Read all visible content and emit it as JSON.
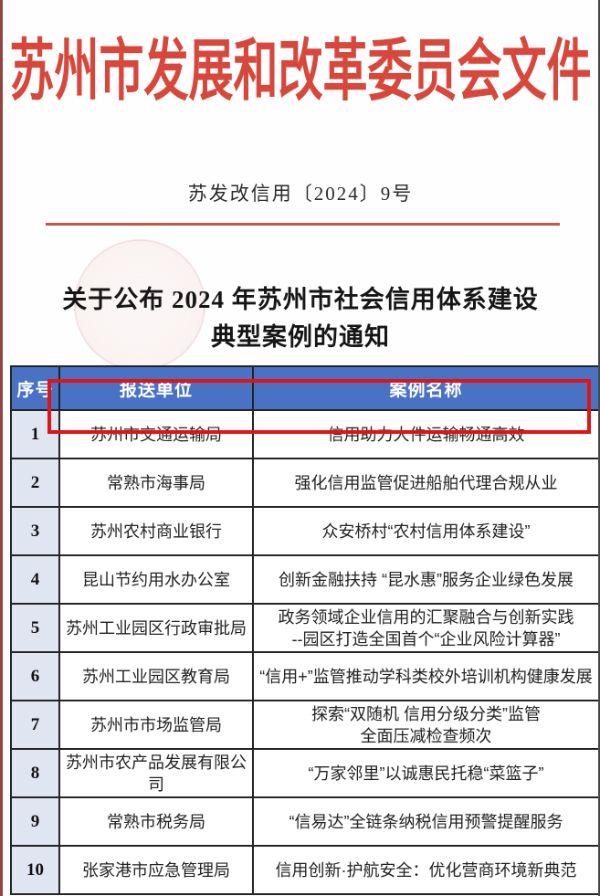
{
  "header": {
    "title": "苏州市发展和改革委员会文件",
    "doc_number": "苏发改信用〔2024〕9号",
    "notice_title_line1": "关于公布 2024 年苏州市社会信用体系建设",
    "notice_title_line2": "典型案例的通知"
  },
  "colors": {
    "letterhead_red": "#d8473b",
    "rule_red": "#c2574a",
    "table_header_blue": "#4a72c4",
    "index_column_bg": "#e0e5f2",
    "highlight_border_red": "#e21313"
  },
  "table": {
    "columns": [
      "序号",
      "报送单位",
      "案例名称"
    ],
    "rows": [
      {
        "index": "1",
        "unit": "苏州市交通运输局",
        "case": "信用助力大件运输畅通高效"
      },
      {
        "index": "2",
        "unit": "常熟市海事局",
        "case": "强化信用监管促进船舶代理合规从业"
      },
      {
        "index": "3",
        "unit": "苏州农村商业银行",
        "case": "众安桥村“农村信用体系建设”"
      },
      {
        "index": "4",
        "unit": "昆山节约用水办公室",
        "case": "创新金融扶持 “昆水惠”服务企业绿色发展"
      },
      {
        "index": "5",
        "unit": "苏州工业园区行政审批局",
        "case": "政务领域企业信用的汇聚融合与创新实践\n--园区打造全国首个“企业风险计算器”"
      },
      {
        "index": "6",
        "unit": "苏州工业园区教育局",
        "case": "“信用+”监管推动学科类校外培训机构健康发展"
      },
      {
        "index": "7",
        "unit": "苏州市市场监管局",
        "case": "探索“双随机 信用分级分类”监管\n全面压减检查频次"
      },
      {
        "index": "8",
        "unit": "苏州市农产品发展有限公司",
        "case": "“万家邻里”以诚惠民托稳“菜篮子”",
        "highlighted": true
      },
      {
        "index": "9",
        "unit": "常熟市税务局",
        "case": "“信易达”全链条纳税信用预警提醒服务"
      },
      {
        "index": "10",
        "unit": "张家港市应急管理局",
        "case": "信用创新·护航安全：优化营商环境新典范"
      }
    ]
  }
}
